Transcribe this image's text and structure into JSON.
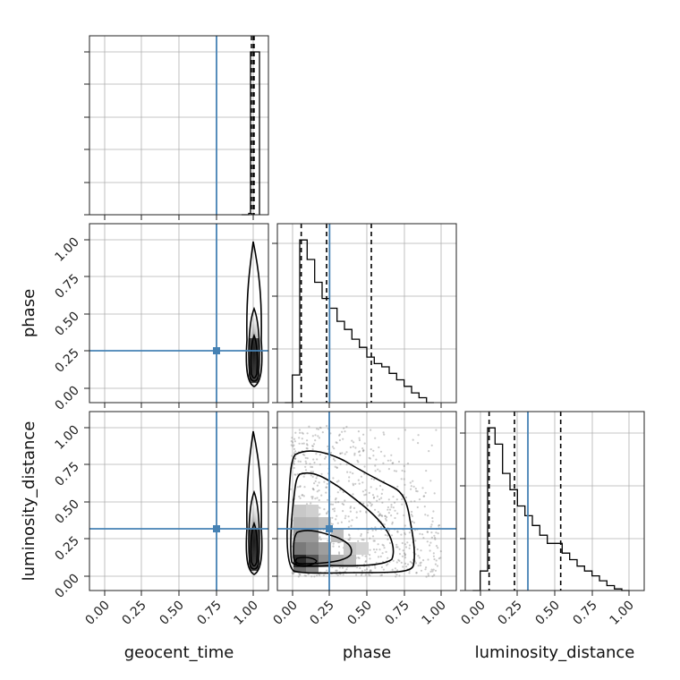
{
  "chart_data": {
    "type": "corner",
    "parameters": [
      "geocent_time",
      "phase",
      "luminosity_distance"
    ],
    "axis_range": [
      -0.1,
      1.1
    ],
    "tick_labels": [
      "0.00",
      "0.25",
      "0.50",
      "0.75",
      "1.00"
    ],
    "tick_values": [
      0,
      0.25,
      0.5,
      0.75,
      1.0
    ],
    "grid": true,
    "truth_color": "#4682b4",
    "truths": {
      "geocent_time": 0.75,
      "phase": 0.25,
      "luminosity_distance": 0.32
    },
    "histograms": {
      "geocent_time": {
        "bins": [
          0.98,
          1.0,
          1.02
        ],
        "counts": [
          0.02,
          1.0
        ],
        "quantiles": [
          0.99,
          1.0,
          1.005
        ],
        "ylim": [
          0,
          1.1
        ]
      },
      "phase": {
        "bins": [
          -0.05,
          0.0,
          0.05,
          0.1,
          0.15,
          0.2,
          0.25,
          0.3,
          0.35,
          0.4,
          0.45,
          0.5,
          0.55,
          0.6,
          0.65,
          0.7,
          0.75,
          0.8,
          0.85,
          0.9,
          0.95
        ],
        "counts": [
          0.0,
          0.17,
          1.0,
          0.88,
          0.74,
          0.64,
          0.58,
          0.5,
          0.45,
          0.39,
          0.34,
          0.28,
          0.24,
          0.22,
          0.18,
          0.14,
          0.1,
          0.06,
          0.03,
          0.0
        ],
        "quantiles": [
          0.06,
          0.23,
          0.53
        ],
        "ylim": [
          0,
          1.1
        ]
      },
      "luminosity_distance": {
        "bins": [
          -0.05,
          0.0,
          0.05,
          0.1,
          0.15,
          0.2,
          0.25,
          0.3,
          0.35,
          0.4,
          0.45,
          0.5,
          0.55,
          0.6,
          0.65,
          0.7,
          0.75,
          0.8,
          0.85,
          0.9,
          0.95,
          1.0
        ],
        "counts": [
          0.0,
          0.12,
          1.0,
          0.9,
          0.72,
          0.62,
          0.52,
          0.46,
          0.4,
          0.34,
          0.29,
          0.29,
          0.23,
          0.19,
          0.15,
          0.12,
          0.09,
          0.06,
          0.03,
          0.01,
          0.0
        ],
        "quantiles": [
          0.06,
          0.23,
          0.54
        ],
        "ylim": [
          0,
          1.1
        ]
      }
    },
    "pairs": [
      {
        "x": "geocent_time",
        "y": "phase",
        "center": [
          1.0,
          0.15
        ]
      },
      {
        "x": "geocent_time",
        "y": "luminosity_distance",
        "center": [
          1.0,
          0.15
        ]
      },
      {
        "x": "phase",
        "y": "luminosity_distance",
        "center": [
          0.08,
          0.08
        ]
      }
    ]
  }
}
